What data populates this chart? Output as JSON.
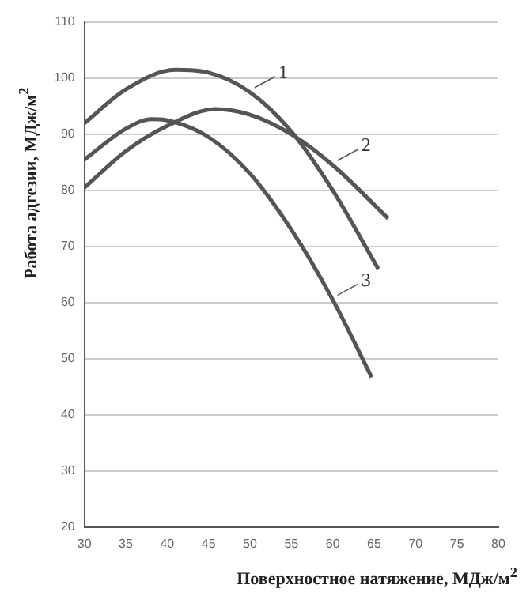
{
  "chart_data": {
    "type": "line",
    "xlabel": "Поверхностное натяжение, МДж/м$^{2}$",
    "ylabel": "Работа адгезии, МДж/м$^{2}$",
    "xlim": [
      30,
      80
    ],
    "xticks": [
      30,
      35,
      40,
      45,
      50,
      55,
      60,
      65,
      70,
      75,
      80
    ],
    "ylim": [
      20,
      110
    ],
    "yticks": [
      20,
      30,
      40,
      50,
      60,
      70,
      80,
      90,
      100,
      110
    ],
    "grid": "y",
    "legend": "right",
    "marker": "none",
    "line_style": "solid",
    "series": [
      {
        "name": "1",
        "color": "#555555",
        "x": [
          30,
          35,
          41,
          45,
          50,
          55,
          60,
          65.5
        ],
        "values": [
          92,
          98,
          101.5,
          101,
          97.5,
          90.5,
          80,
          66
        ]
      },
      {
        "name": "2",
        "color": "#555555",
        "x": [
          30,
          35,
          40,
          45.8,
          50,
          55,
          60,
          66.7
        ],
        "values": [
          80.5,
          87,
          91.5,
          94.5,
          93.5,
          90,
          84.5,
          75
        ]
      },
      {
        "name": "3",
        "color": "#555555",
        "x": [
          30,
          35,
          38.1,
          40,
          45,
          50,
          55,
          60,
          64.7
        ],
        "values": [
          85.5,
          91,
          92.7,
          92.5,
          89.5,
          83,
          73,
          60.5,
          46.7
        ]
      }
    ]
  }
}
